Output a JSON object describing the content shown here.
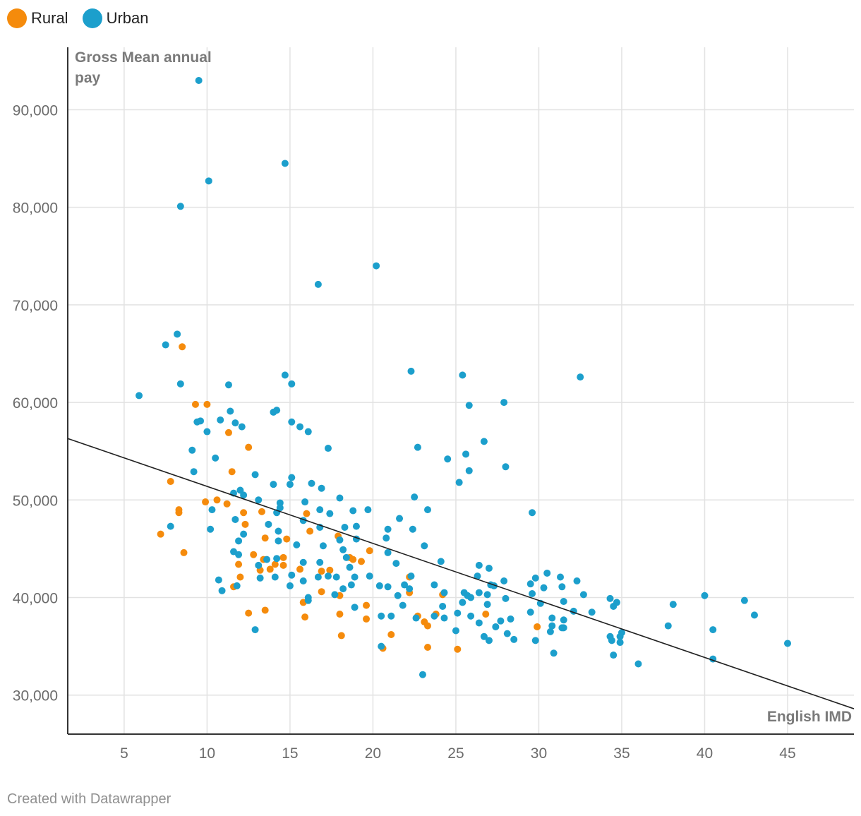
{
  "footer": {
    "credit": "Created with Datawrapper"
  },
  "chart_data": {
    "type": "scatter",
    "title": "",
    "xlabel": "English IMD",
    "ylabel": "Gross Mean annual pay",
    "xlim": [
      1.6,
      49
    ],
    "ylim": [
      26000,
      96400
    ],
    "x_ticks": [
      5,
      10,
      15,
      20,
      25,
      30,
      35,
      40,
      45
    ],
    "x_tick_labels": [
      "5",
      "10",
      "15",
      "20",
      "25",
      "30",
      "35",
      "40",
      "45"
    ],
    "y_ticks": [
      30000,
      40000,
      50000,
      60000,
      70000,
      80000,
      90000
    ],
    "y_tick_labels": [
      "30,000",
      "40,000",
      "50,000",
      "60,000",
      "70,000",
      "80,000",
      "90,000"
    ],
    "grid": true,
    "legend_position": "top-left",
    "trendline": {
      "x": [
        1.6,
        49
      ],
      "y": [
        56300,
        28600
      ]
    },
    "series": [
      {
        "name": "Rural",
        "color": "#f58b0c",
        "points": [
          [
            8.5,
            65700
          ],
          [
            9.3,
            59800
          ],
          [
            10,
            59800
          ],
          [
            11.3,
            56900
          ],
          [
            12.5,
            55400
          ],
          [
            11.5,
            52900
          ],
          [
            7.8,
            51900
          ],
          [
            9.9,
            49800
          ],
          [
            10.6,
            50000
          ],
          [
            11.2,
            49600
          ],
          [
            8.3,
            49000
          ],
          [
            8.3,
            48700
          ],
          [
            12.2,
            48700
          ],
          [
            13.3,
            48800
          ],
          [
            12.3,
            47500
          ],
          [
            7.2,
            46500
          ],
          [
            8.6,
            44600
          ],
          [
            13.5,
            46100
          ],
          [
            14.8,
            46000
          ],
          [
            16,
            48600
          ],
          [
            16.2,
            46800
          ],
          [
            11.9,
            43400
          ],
          [
            12.8,
            44400
          ],
          [
            13.4,
            43900
          ],
          [
            14.6,
            44100
          ],
          [
            14.1,
            43400
          ],
          [
            14.6,
            43300
          ],
          [
            12,
            42100
          ],
          [
            13.2,
            42800
          ],
          [
            13.8,
            42900
          ],
          [
            15.6,
            42900
          ],
          [
            16.9,
            42700
          ],
          [
            17.4,
            42800
          ],
          [
            11.6,
            41100
          ],
          [
            12.5,
            38400
          ],
          [
            13.5,
            38700
          ],
          [
            15.8,
            39500
          ],
          [
            15.9,
            38000
          ],
          [
            16.9,
            40600
          ],
          [
            17.9,
            46300
          ],
          [
            18.6,
            44100
          ],
          [
            18.8,
            43900
          ],
          [
            19.3,
            43700
          ],
          [
            19.8,
            44800
          ],
          [
            18,
            40200
          ],
          [
            18,
            38300
          ],
          [
            18.1,
            36100
          ],
          [
            19.6,
            39200
          ],
          [
            19.6,
            37800
          ],
          [
            20.6,
            34800
          ],
          [
            21.1,
            36200
          ],
          [
            22.2,
            42100
          ],
          [
            22.2,
            40500
          ],
          [
            22.7,
            38100
          ],
          [
            23.1,
            37500
          ],
          [
            23.3,
            37100
          ],
          [
            23.3,
            34900
          ],
          [
            23.8,
            38300
          ],
          [
            24.2,
            40300
          ],
          [
            25.1,
            34700
          ],
          [
            26.8,
            38300
          ],
          [
            29.9,
            37000
          ]
        ]
      },
      {
        "name": "Urban",
        "color": "#1c9fcc",
        "points": [
          [
            9.5,
            93000
          ],
          [
            14.7,
            84500
          ],
          [
            10.1,
            82700
          ],
          [
            8.4,
            80100
          ],
          [
            20.2,
            74000
          ],
          [
            16.7,
            72100
          ],
          [
            8.2,
            67000
          ],
          [
            7.5,
            65900
          ],
          [
            8.4,
            61900
          ],
          [
            5.9,
            60700
          ],
          [
            22.3,
            63200
          ],
          [
            25.4,
            62800
          ],
          [
            32.5,
            62600
          ],
          [
            14.7,
            62800
          ],
          [
            15.1,
            61900
          ],
          [
            11.3,
            61800
          ],
          [
            27.9,
            60000
          ],
          [
            25.8,
            59700
          ],
          [
            14,
            59000
          ],
          [
            14.2,
            59200
          ],
          [
            11.4,
            59100
          ],
          [
            9.4,
            58000
          ],
          [
            9.6,
            58100
          ],
          [
            10.8,
            58200
          ],
          [
            11.7,
            57900
          ],
          [
            12.1,
            57500
          ],
          [
            15.1,
            58000
          ],
          [
            15.6,
            57500
          ],
          [
            16.1,
            57000
          ],
          [
            10,
            57000
          ],
          [
            26.7,
            56000
          ],
          [
            22.7,
            55400
          ],
          [
            17.3,
            55300
          ],
          [
            9.1,
            55100
          ],
          [
            10.5,
            54300
          ],
          [
            24.5,
            54200
          ],
          [
            25.6,
            54700
          ],
          [
            28,
            53400
          ],
          [
            9.2,
            52900
          ],
          [
            12.9,
            52600
          ],
          [
            15.1,
            52300
          ],
          [
            16.3,
            51700
          ],
          [
            25.8,
            53000
          ],
          [
            25.2,
            51800
          ],
          [
            14,
            51600
          ],
          [
            15,
            51600
          ],
          [
            16.9,
            51200
          ],
          [
            11.6,
            50700
          ],
          [
            12.2,
            50500
          ],
          [
            12,
            51000
          ],
          [
            13.1,
            50000
          ],
          [
            14.4,
            49700
          ],
          [
            15.9,
            49800
          ],
          [
            18,
            50200
          ],
          [
            22.5,
            50300
          ],
          [
            10.3,
            49000
          ],
          [
            14.4,
            49200
          ],
          [
            14.2,
            48700
          ],
          [
            16.8,
            49000
          ],
          [
            17.4,
            48600
          ],
          [
            18.8,
            48900
          ],
          [
            19.7,
            49000
          ],
          [
            23.3,
            49000
          ],
          [
            29.6,
            48700
          ],
          [
            7.8,
            47300
          ],
          [
            10.2,
            47000
          ],
          [
            11.7,
            48000
          ],
          [
            12.2,
            46500
          ],
          [
            13.7,
            47500
          ],
          [
            14.3,
            46800
          ],
          [
            15.8,
            47900
          ],
          [
            16.8,
            47200
          ],
          [
            18.3,
            47200
          ],
          [
            19,
            47300
          ],
          [
            20.9,
            47000
          ],
          [
            21.6,
            48100
          ],
          [
            22.4,
            47000
          ],
          [
            11.9,
            45800
          ],
          [
            14.3,
            45800
          ],
          [
            15.4,
            45400
          ],
          [
            17,
            45300
          ],
          [
            18,
            45900
          ],
          [
            19,
            46000
          ],
          [
            20.8,
            46100
          ],
          [
            11.6,
            44700
          ],
          [
            11.9,
            44400
          ],
          [
            13.6,
            43900
          ],
          [
            15.8,
            43600
          ],
          [
            16.8,
            43600
          ],
          [
            18.2,
            44900
          ],
          [
            18.4,
            44100
          ],
          [
            21.4,
            43500
          ],
          [
            23.1,
            45300
          ],
          [
            24.1,
            43700
          ],
          [
            13.1,
            43300
          ],
          [
            14.2,
            44000
          ],
          [
            18.6,
            43100
          ],
          [
            20.9,
            44600
          ],
          [
            26.4,
            43300
          ],
          [
            27,
            43000
          ],
          [
            30.5,
            42500
          ],
          [
            31.3,
            42100
          ],
          [
            32.3,
            41700
          ],
          [
            10.7,
            41800
          ],
          [
            13.2,
            42000
          ],
          [
            14.1,
            42100
          ],
          [
            15.1,
            42300
          ],
          [
            15.8,
            41700
          ],
          [
            16.7,
            42100
          ],
          [
            17.3,
            42200
          ],
          [
            17.8,
            42100
          ],
          [
            18.9,
            42100
          ],
          [
            19.8,
            42200
          ],
          [
            22.3,
            42200
          ],
          [
            26.3,
            42200
          ],
          [
            27.9,
            41700
          ],
          [
            29.5,
            41400
          ],
          [
            29.8,
            42000
          ],
          [
            10.9,
            40700
          ],
          [
            11.8,
            41200
          ],
          [
            15,
            41200
          ],
          [
            18.2,
            40900
          ],
          [
            18.7,
            41300
          ],
          [
            20.4,
            41200
          ],
          [
            20.9,
            41100
          ],
          [
            21.9,
            41300
          ],
          [
            22.2,
            40900
          ],
          [
            23.7,
            41300
          ],
          [
            24.3,
            40500
          ],
          [
            25.5,
            40500
          ],
          [
            26.4,
            40500
          ],
          [
            27.1,
            41300
          ],
          [
            27.3,
            41200
          ],
          [
            29.6,
            40400
          ],
          [
            30.3,
            41000
          ],
          [
            31.4,
            41100
          ],
          [
            16.1,
            40000
          ],
          [
            17.7,
            40300
          ],
          [
            21.5,
            40200
          ],
          [
            25.7,
            40200
          ],
          [
            25.9,
            40000
          ],
          [
            26.9,
            40300
          ],
          [
            28,
            39900
          ],
          [
            30.1,
            39400
          ],
          [
            31.5,
            39600
          ],
          [
            32.7,
            40300
          ],
          [
            34.3,
            39900
          ],
          [
            34.7,
            39500
          ],
          [
            16.1,
            39700
          ],
          [
            18.9,
            39000
          ],
          [
            21.8,
            39200
          ],
          [
            24.2,
            39100
          ],
          [
            25.4,
            39500
          ],
          [
            26.9,
            39300
          ],
          [
            29.5,
            38500
          ],
          [
            32.1,
            38600
          ],
          [
            33.2,
            38500
          ],
          [
            34.5,
            39100
          ],
          [
            38.1,
            39300
          ],
          [
            40,
            40200
          ],
          [
            42.4,
            39700
          ],
          [
            43,
            38200
          ],
          [
            20.5,
            38100
          ],
          [
            21.1,
            38100
          ],
          [
            22.6,
            37900
          ],
          [
            23.7,
            38100
          ],
          [
            24.3,
            37900
          ],
          [
            25.1,
            38400
          ],
          [
            25.9,
            38100
          ],
          [
            26.4,
            37400
          ],
          [
            27.4,
            37000
          ],
          [
            27.7,
            37600
          ],
          [
            28.3,
            37800
          ],
          [
            30.8,
            37900
          ],
          [
            31.5,
            37700
          ],
          [
            12.9,
            36700
          ],
          [
            25,
            36600
          ],
          [
            26.7,
            36000
          ],
          [
            27,
            35600
          ],
          [
            28.1,
            36300
          ],
          [
            28.5,
            35700
          ],
          [
            30.7,
            36500
          ],
          [
            30.8,
            37100
          ],
          [
            31.4,
            36900
          ],
          [
            31.5,
            36900
          ],
          [
            34.3,
            36000
          ],
          [
            34.4,
            35600
          ],
          [
            34.9,
            36000
          ],
          [
            34.9,
            35400
          ],
          [
            35,
            36400
          ],
          [
            37.8,
            37100
          ],
          [
            40.5,
            36700
          ],
          [
            45,
            35300
          ],
          [
            20.5,
            35000
          ],
          [
            30.9,
            34300
          ],
          [
            34.5,
            34100
          ],
          [
            36,
            33200
          ],
          [
            40.5,
            33700
          ],
          [
            29.8,
            35600
          ],
          [
            23,
            32100
          ]
        ]
      }
    ]
  }
}
